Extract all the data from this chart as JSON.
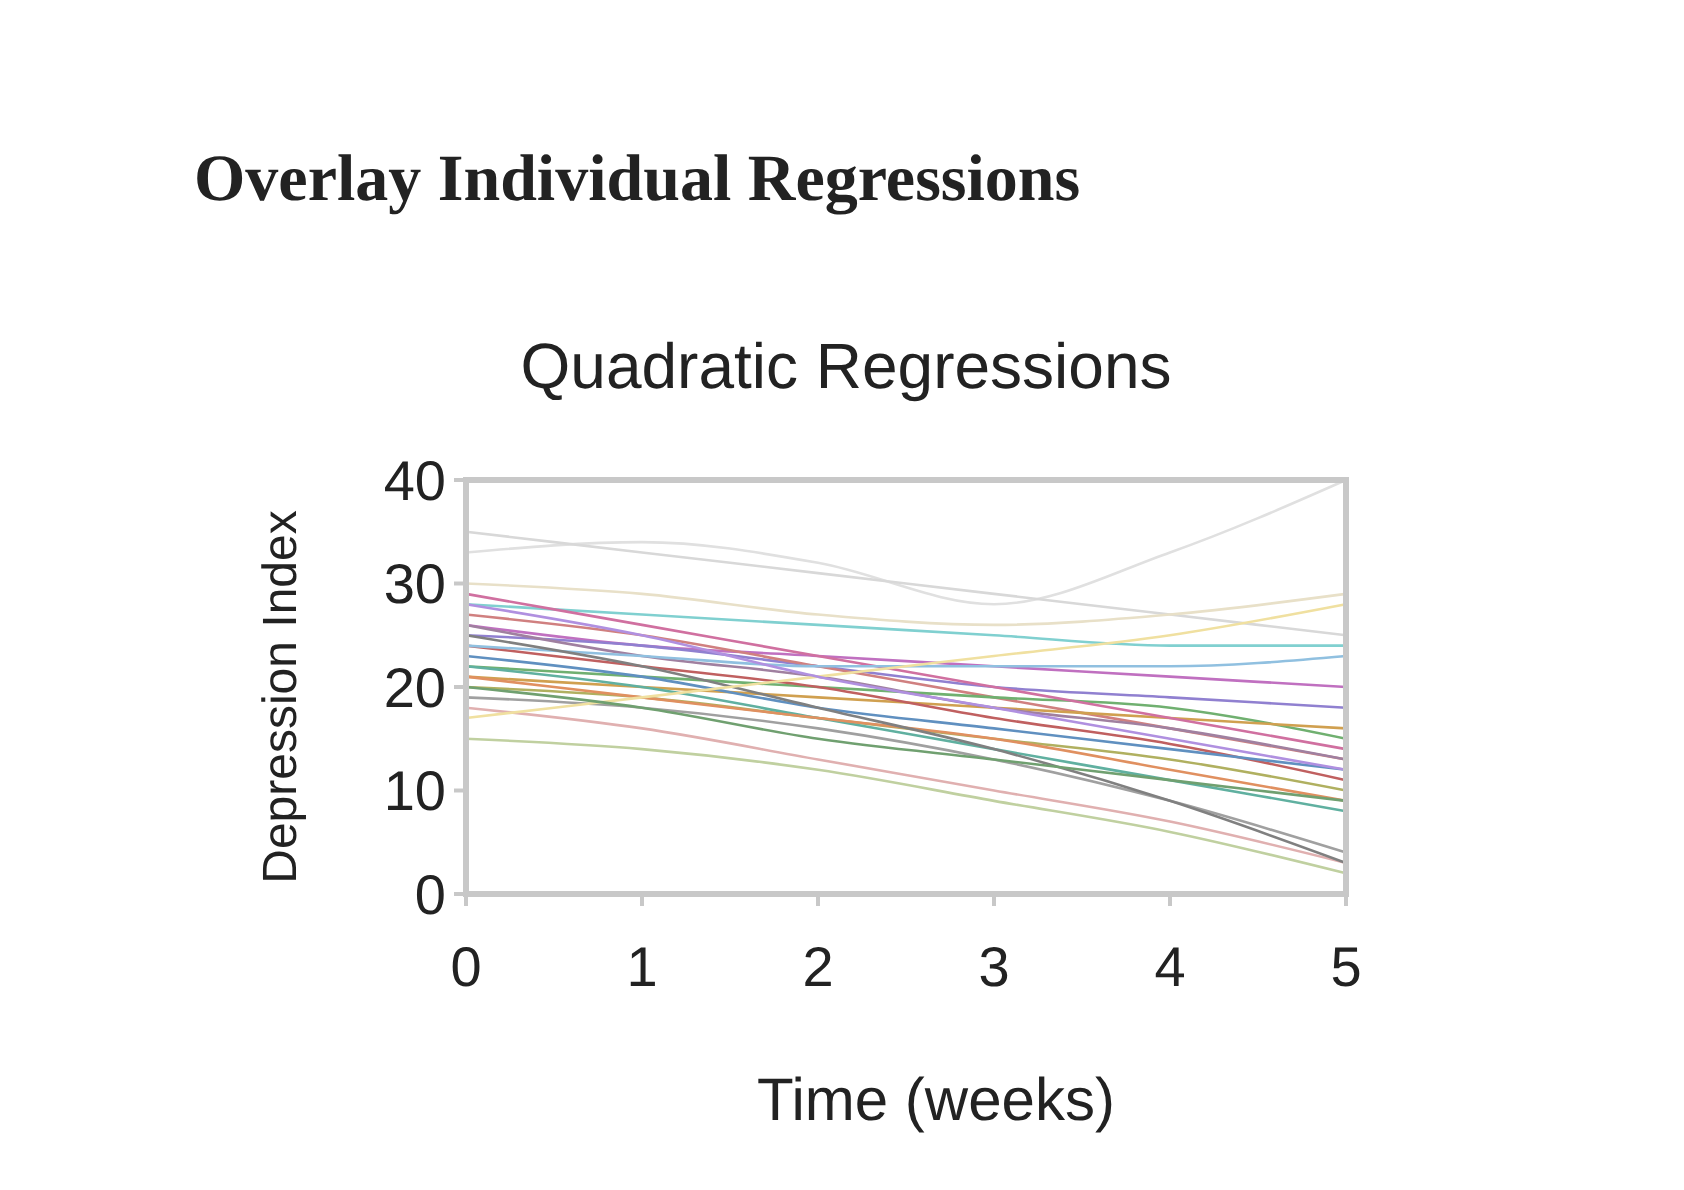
{
  "chart_data": {
    "type": "line",
    "title": "Overlay Individual Regressions",
    "subtitle": "Quadratic Regressions",
    "xlabel": "Time (weeks)",
    "ylabel": "Depression Index",
    "x": [
      0,
      1,
      2,
      3,
      4,
      5
    ],
    "xlim": [
      0,
      5
    ],
    "xticks": [
      0,
      1,
      2,
      3,
      4,
      5
    ],
    "ylim": [
      0,
      40
    ],
    "yticks": [
      0,
      10,
      20,
      30,
      40
    ],
    "grid": false,
    "marker": "none",
    "line_style": "solid",
    "series": [
      {
        "color": "#e0e0e0",
        "values": [
          33,
          34,
          32,
          28,
          33,
          40
        ]
      },
      {
        "color": "#d8d8d8",
        "values": [
          35,
          33,
          31,
          29,
          27,
          25
        ]
      },
      {
        "color": "#e8e0c8",
        "values": [
          30,
          29,
          27,
          26,
          27,
          29
        ]
      },
      {
        "color": "#80d0d0",
        "values": [
          28,
          27,
          26,
          25,
          24,
          24
        ]
      },
      {
        "color": "#c070c0",
        "values": [
          26,
          24,
          23,
          22,
          21,
          20
        ]
      },
      {
        "color": "#9080d0",
        "values": [
          25,
          24,
          22,
          20,
          19,
          18
        ]
      },
      {
        "color": "#d08080",
        "values": [
          27,
          25,
          22,
          19,
          16,
          13
        ]
      },
      {
        "color": "#70b070",
        "values": [
          22,
          21,
          20,
          19,
          18,
          15
        ]
      },
      {
        "color": "#d0a050",
        "values": [
          21,
          20,
          19,
          18,
          17,
          16
        ]
      },
      {
        "color": "#c06060",
        "values": [
          24,
          22,
          20,
          17,
          14.5,
          11
        ]
      },
      {
        "color": "#6090c0",
        "values": [
          23,
          21,
          18,
          16,
          14,
          12
        ]
      },
      {
        "color": "#b0b060",
        "values": [
          20,
          19,
          17,
          15,
          13,
          10
        ]
      },
      {
        "color": "#d070a0",
        "values": [
          29,
          26,
          23,
          20,
          17,
          14
        ]
      },
      {
        "color": "#60b0a0",
        "values": [
          22,
          20,
          17,
          14,
          11,
          8
        ]
      },
      {
        "color": "#a0a0a0",
        "values": [
          19,
          18,
          16,
          13,
          9,
          4
        ]
      },
      {
        "color": "#e0b0b0",
        "values": [
          18,
          16,
          13,
          10,
          7,
          3
        ]
      },
      {
        "color": "#c0d0a0",
        "values": [
          15,
          14,
          12,
          9,
          6,
          2
        ]
      },
      {
        "color": "#a080a0",
        "values": [
          26,
          23,
          21,
          18,
          16,
          13
        ]
      },
      {
        "color": "#90c0e0",
        "values": [
          24,
          23,
          22,
          22,
          22,
          23
        ]
      },
      {
        "color": "#e09060",
        "values": [
          21,
          19,
          17,
          15,
          12,
          9
        ]
      },
      {
        "color": "#808080",
        "values": [
          25,
          22,
          18,
          14,
          9,
          3
        ]
      },
      {
        "color": "#f0e0a0",
        "values": [
          17,
          19,
          21,
          23,
          25,
          28
        ]
      },
      {
        "color": "#b090e0",
        "values": [
          28,
          25,
          21,
          18,
          15,
          12
        ]
      },
      {
        "color": "#70a070",
        "values": [
          20,
          18,
          15,
          13,
          11,
          9
        ]
      }
    ]
  }
}
